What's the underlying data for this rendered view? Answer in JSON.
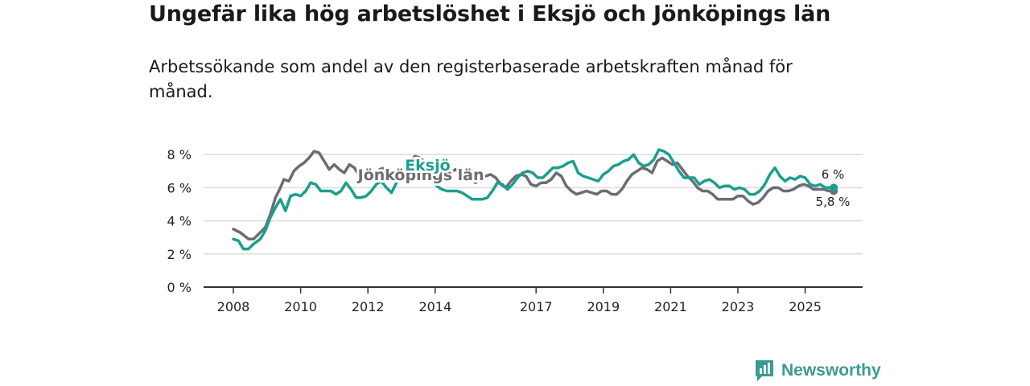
{
  "title": "Ungefär lika hög arbetslöshet i Eksjö och Jönköpings län",
  "subtitle": "Arbetssökande som andel av den registerbaserade arbetskraften månad för månad.",
  "brand": {
    "name": "Newsworthy",
    "icon": "newsworthy-logo-icon",
    "color": "#3b9a96"
  },
  "chart_data": {
    "type": "line",
    "title": "Ungefär lika hög arbetslöshet i Eksjö och Jönköpings län",
    "subtitle": "Arbetssökande som andel av den registerbaserade arbetskraften månad för månad.",
    "xlabel": "",
    "ylabel": "",
    "x_range": [
      2008,
      2026.2
    ],
    "ylim": [
      0,
      8.6
    ],
    "yticks": [
      0,
      2,
      4,
      6,
      8
    ],
    "ytick_labels": [
      "0 %",
      "2 %",
      "4 %",
      "6 %",
      "8 %"
    ],
    "xticks": [
      2008,
      2010,
      2012,
      2014,
      2017,
      2019,
      2021,
      2023,
      2025
    ],
    "xtick_labels": [
      "2008",
      "2010",
      "2012",
      "2014",
      "2017",
      "2019",
      "2021",
      "2023",
      "2025"
    ],
    "grid": true,
    "series": [
      {
        "name": "Jönköpings län",
        "label": "Jönköpings län",
        "label_at": [
          2011.7,
          6.45
        ],
        "color": "#6d6c72",
        "end_label": "5,8 %",
        "points": [
          [
            2008.0,
            3.5
          ],
          [
            2008.2,
            3.3
          ],
          [
            2008.45,
            2.9
          ],
          [
            2008.6,
            2.9
          ],
          [
            2008.8,
            3.3
          ],
          [
            2008.95,
            3.6
          ],
          [
            2009.1,
            4.4
          ],
          [
            2009.25,
            5.4
          ],
          [
            2009.4,
            6.0
          ],
          [
            2009.5,
            6.5
          ],
          [
            2009.65,
            6.4
          ],
          [
            2009.8,
            7.0
          ],
          [
            2009.95,
            7.3
          ],
          [
            2010.1,
            7.5
          ],
          [
            2010.25,
            7.8
          ],
          [
            2010.4,
            8.2
          ],
          [
            2010.55,
            8.1
          ],
          [
            2010.7,
            7.6
          ],
          [
            2010.85,
            7.1
          ],
          [
            2011.0,
            7.4
          ],
          [
            2011.15,
            7.1
          ],
          [
            2011.3,
            6.9
          ],
          [
            2011.45,
            7.4
          ],
          [
            2011.6,
            7.2
          ],
          [
            2011.75,
            6.7
          ],
          [
            2011.9,
            6.6
          ],
          [
            2012.05,
            6.6
          ],
          [
            2012.2,
            6.7
          ],
          [
            2012.35,
            7.1
          ],
          [
            2012.5,
            7.2
          ],
          [
            2012.65,
            6.9
          ],
          [
            2012.8,
            6.6
          ],
          [
            2012.95,
            6.9
          ],
          [
            2013.1,
            7.3
          ],
          [
            2013.25,
            7.6
          ],
          [
            2013.4,
            7.9
          ],
          [
            2013.55,
            7.8
          ],
          [
            2013.7,
            7.5
          ],
          [
            2013.85,
            7.4
          ],
          [
            2014.0,
            7.5
          ],
          [
            2014.15,
            7.1
          ],
          [
            2014.3,
            6.8
          ],
          [
            2014.45,
            6.9
          ],
          [
            2014.6,
            7.1
          ],
          [
            2014.75,
            6.9
          ],
          [
            2014.9,
            6.6
          ],
          [
            2015.05,
            6.5
          ],
          [
            2015.2,
            6.3
          ],
          [
            2015.35,
            6.6
          ],
          [
            2015.5,
            6.7
          ],
          [
            2015.65,
            6.8
          ],
          [
            2015.8,
            6.6
          ],
          [
            2015.95,
            6.2
          ],
          [
            2016.1,
            6.0
          ],
          [
            2016.25,
            6.4
          ],
          [
            2016.4,
            6.7
          ],
          [
            2016.55,
            6.8
          ],
          [
            2016.7,
            6.7
          ],
          [
            2016.85,
            6.2
          ],
          [
            2017.0,
            6.1
          ],
          [
            2017.15,
            6.3
          ],
          [
            2017.3,
            6.3
          ],
          [
            2017.45,
            6.5
          ],
          [
            2017.6,
            6.9
          ],
          [
            2017.75,
            6.7
          ],
          [
            2017.9,
            6.1
          ],
          [
            2018.05,
            5.8
          ],
          [
            2018.2,
            5.6
          ],
          [
            2018.35,
            5.7
          ],
          [
            2018.5,
            5.8
          ],
          [
            2018.65,
            5.7
          ],
          [
            2018.8,
            5.6
          ],
          [
            2018.95,
            5.8
          ],
          [
            2019.1,
            5.8
          ],
          [
            2019.25,
            5.6
          ],
          [
            2019.4,
            5.6
          ],
          [
            2019.55,
            5.9
          ],
          [
            2019.7,
            6.4
          ],
          [
            2019.85,
            6.8
          ],
          [
            2020.0,
            7.0
          ],
          [
            2020.15,
            7.2
          ],
          [
            2020.3,
            7.1
          ],
          [
            2020.45,
            6.9
          ],
          [
            2020.6,
            7.6
          ],
          [
            2020.75,
            7.8
          ],
          [
            2020.9,
            7.6
          ],
          [
            2021.05,
            7.4
          ],
          [
            2021.2,
            7.5
          ],
          [
            2021.35,
            7.1
          ],
          [
            2021.5,
            6.7
          ],
          [
            2021.65,
            6.4
          ],
          [
            2021.8,
            6.0
          ],
          [
            2021.95,
            5.8
          ],
          [
            2022.1,
            5.8
          ],
          [
            2022.25,
            5.6
          ],
          [
            2022.4,
            5.3
          ],
          [
            2022.55,
            5.3
          ],
          [
            2022.7,
            5.3
          ],
          [
            2022.85,
            5.3
          ],
          [
            2023.0,
            5.5
          ],
          [
            2023.15,
            5.5
          ],
          [
            2023.3,
            5.2
          ],
          [
            2023.45,
            5.0
          ],
          [
            2023.6,
            5.1
          ],
          [
            2023.75,
            5.4
          ],
          [
            2023.9,
            5.8
          ],
          [
            2024.05,
            6.0
          ],
          [
            2024.2,
            6.0
          ],
          [
            2024.35,
            5.8
          ],
          [
            2024.5,
            5.8
          ],
          [
            2024.65,
            5.9
          ],
          [
            2024.8,
            6.1
          ],
          [
            2024.95,
            6.2
          ],
          [
            2025.1,
            6.1
          ],
          [
            2025.25,
            5.9
          ],
          [
            2025.4,
            5.9
          ],
          [
            2025.55,
            5.9
          ],
          [
            2025.7,
            5.8
          ],
          [
            2025.85,
            5.8
          ]
        ]
      },
      {
        "name": "Eksjö",
        "label": "Eksjö",
        "label_at": [
          2013.1,
          7.05
        ],
        "color": "#1c9e8f",
        "end_label": "6 %",
        "points": [
          [
            2008.0,
            2.9
          ],
          [
            2008.15,
            2.8
          ],
          [
            2008.3,
            2.3
          ],
          [
            2008.45,
            2.3
          ],
          [
            2008.6,
            2.6
          ],
          [
            2008.8,
            2.9
          ],
          [
            2008.95,
            3.4
          ],
          [
            2009.1,
            4.2
          ],
          [
            2009.25,
            4.8
          ],
          [
            2009.4,
            5.3
          ],
          [
            2009.55,
            4.6
          ],
          [
            2009.7,
            5.5
          ],
          [
            2009.85,
            5.6
          ],
          [
            2010.0,
            5.5
          ],
          [
            2010.15,
            5.8
          ],
          [
            2010.3,
            6.3
          ],
          [
            2010.45,
            6.2
          ],
          [
            2010.6,
            5.8
          ],
          [
            2010.75,
            5.8
          ],
          [
            2010.9,
            5.8
          ],
          [
            2011.05,
            5.6
          ],
          [
            2011.2,
            5.8
          ],
          [
            2011.35,
            6.3
          ],
          [
            2011.5,
            5.9
          ],
          [
            2011.65,
            5.4
          ],
          [
            2011.8,
            5.4
          ],
          [
            2011.95,
            5.5
          ],
          [
            2012.1,
            5.8
          ],
          [
            2012.25,
            6.2
          ],
          [
            2012.4,
            6.4
          ],
          [
            2012.55,
            6.0
          ],
          [
            2012.7,
            5.7
          ],
          [
            2012.85,
            6.3
          ],
          [
            2013.0,
            6.8
          ],
          [
            2013.15,
            7.0
          ],
          [
            2013.3,
            7.6
          ],
          [
            2013.45,
            7.8
          ],
          [
            2013.6,
            7.3
          ],
          [
            2013.75,
            6.9
          ],
          [
            2013.9,
            6.4
          ],
          [
            2014.05,
            6.1
          ],
          [
            2014.2,
            5.9
          ],
          [
            2014.35,
            5.8
          ],
          [
            2014.5,
            5.8
          ],
          [
            2014.65,
            5.8
          ],
          [
            2014.8,
            5.7
          ],
          [
            2014.95,
            5.5
          ],
          [
            2015.1,
            5.3
          ],
          [
            2015.25,
            5.3
          ],
          [
            2015.4,
            5.3
          ],
          [
            2015.55,
            5.4
          ],
          [
            2015.7,
            5.8
          ],
          [
            2015.85,
            6.3
          ],
          [
            2016.0,
            6.2
          ],
          [
            2016.15,
            5.9
          ],
          [
            2016.3,
            6.2
          ],
          [
            2016.45,
            6.6
          ],
          [
            2016.6,
            6.9
          ],
          [
            2016.75,
            7.0
          ],
          [
            2016.9,
            6.9
          ],
          [
            2017.05,
            6.6
          ],
          [
            2017.2,
            6.6
          ],
          [
            2017.35,
            6.9
          ],
          [
            2017.5,
            7.2
          ],
          [
            2017.65,
            7.2
          ],
          [
            2017.8,
            7.3
          ],
          [
            2017.95,
            7.5
          ],
          [
            2018.1,
            7.6
          ],
          [
            2018.25,
            6.9
          ],
          [
            2018.4,
            6.7
          ],
          [
            2018.55,
            6.6
          ],
          [
            2018.7,
            6.5
          ],
          [
            2018.85,
            6.4
          ],
          [
            2019.0,
            6.8
          ],
          [
            2019.15,
            7.0
          ],
          [
            2019.3,
            7.3
          ],
          [
            2019.45,
            7.4
          ],
          [
            2019.6,
            7.6
          ],
          [
            2019.75,
            7.7
          ],
          [
            2019.9,
            8.0
          ],
          [
            2020.05,
            7.5
          ],
          [
            2020.2,
            7.3
          ],
          [
            2020.35,
            7.4
          ],
          [
            2020.5,
            7.7
          ],
          [
            2020.65,
            8.3
          ],
          [
            2020.8,
            8.2
          ],
          [
            2020.95,
            8.0
          ],
          [
            2021.1,
            7.5
          ],
          [
            2021.25,
            7.0
          ],
          [
            2021.4,
            6.6
          ],
          [
            2021.55,
            6.6
          ],
          [
            2021.7,
            6.6
          ],
          [
            2021.85,
            6.2
          ],
          [
            2022.0,
            6.4
          ],
          [
            2022.15,
            6.5
          ],
          [
            2022.3,
            6.3
          ],
          [
            2022.45,
            6.0
          ],
          [
            2022.6,
            6.1
          ],
          [
            2022.75,
            6.1
          ],
          [
            2022.9,
            5.9
          ],
          [
            2023.05,
            6.0
          ],
          [
            2023.2,
            5.9
          ],
          [
            2023.35,
            5.6
          ],
          [
            2023.5,
            5.6
          ],
          [
            2023.65,
            5.8
          ],
          [
            2023.8,
            6.2
          ],
          [
            2023.95,
            6.8
          ],
          [
            2024.1,
            7.2
          ],
          [
            2024.25,
            6.7
          ],
          [
            2024.4,
            6.4
          ],
          [
            2024.55,
            6.6
          ],
          [
            2024.7,
            6.5
          ],
          [
            2024.85,
            6.7
          ],
          [
            2025.0,
            6.6
          ],
          [
            2025.15,
            6.2
          ],
          [
            2025.3,
            6.1
          ],
          [
            2025.45,
            6.2
          ],
          [
            2025.6,
            6.0
          ],
          [
            2025.75,
            6.0
          ],
          [
            2025.85,
            6.0
          ]
        ]
      }
    ]
  }
}
